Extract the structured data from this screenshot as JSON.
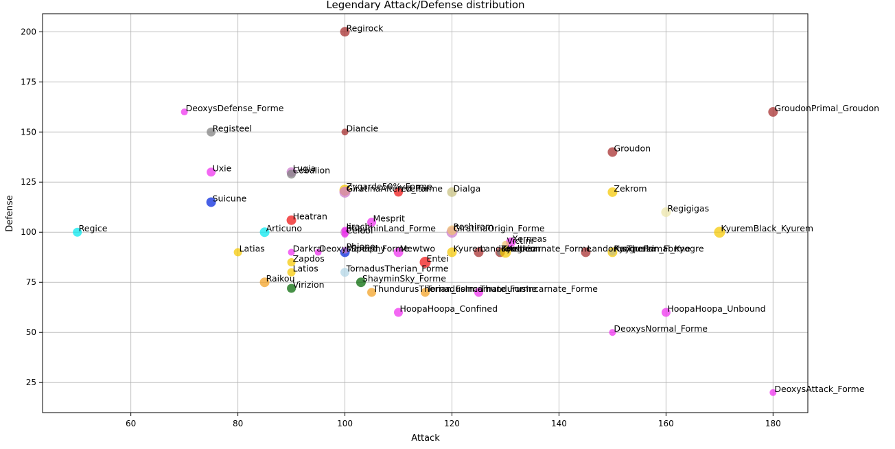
{
  "chart_data": {
    "type": "scatter",
    "title": "Legendary Attack/Defense distribution",
    "xlabel": "Attack",
    "ylabel": "Defense",
    "xlim": [
      43.5,
      186.5
    ],
    "ylim": [
      10,
      209
    ],
    "xticks": [
      60,
      80,
      100,
      120,
      140,
      160,
      180
    ],
    "yticks": [
      25,
      50,
      75,
      100,
      125,
      150,
      175,
      200
    ],
    "grid": true,
    "colors": {
      "brown": "#a52a2a",
      "magenta": "#ee2eee",
      "gray": "#808080",
      "blue": "#0022dd",
      "cyan": "#00e8ee",
      "red": "#ee1111",
      "orange": "#f3a020",
      "gold": "#f5c800",
      "green": "#006600",
      "khaki": "#c8c080",
      "lightblue": "#b0d4e4",
      "beige": "#ece4a8",
      "plum": "#cc77cc",
      "wheat": "#f0c070"
    },
    "points": [
      {
        "label": "Regirock",
        "x": 100,
        "y": 200,
        "color": "brown",
        "size": 7
      },
      {
        "label": "DeoxysDefense_Forme",
        "x": 70,
        "y": 160,
        "color": "magenta",
        "size": 5
      },
      {
        "label": "GroudonPrimal_Groudon",
        "x": 180,
        "y": 160,
        "color": "brown",
        "size": 7
      },
      {
        "label": "Registeel",
        "x": 75,
        "y": 150,
        "color": "gray",
        "size": 6.5
      },
      {
        "label": "Diancie",
        "x": 100,
        "y": 150,
        "color": "brown",
        "size": 5
      },
      {
        "label": "Groudon",
        "x": 150,
        "y": 140,
        "color": "brown",
        "size": 7
      },
      {
        "label": "Uxie",
        "x": 75,
        "y": 130,
        "color": "magenta",
        "size": 6.5
      },
      {
        "label": "Lugia",
        "x": 90,
        "y": 130,
        "color": "plum",
        "size": 7
      },
      {
        "label": "Cobalion",
        "x": 90,
        "y": 129,
        "color": "gray",
        "size": 6.5
      },
      {
        "label": "Zygarde50%_Forme",
        "x": 100,
        "y": 121,
        "color": "gold",
        "size": 8
      },
      {
        "label": "GiratinaAltered_Forme",
        "x": 100,
        "y": 120,
        "color": "plum",
        "size": 8
      },
      {
        "label": "Yveltal",
        "x": 110,
        "y": 120,
        "color": "red",
        "size": 6.5
      },
      {
        "label": "Dialga",
        "x": 120,
        "y": 120,
        "color": "khaki",
        "size": 7
      },
      {
        "label": "Zekrom",
        "x": 150,
        "y": 120,
        "color": "gold",
        "size": 7
      },
      {
        "label": "Suicune",
        "x": 75,
        "y": 115,
        "color": "blue",
        "size": 7
      },
      {
        "label": "Regigigas",
        "x": 160,
        "y": 110,
        "color": "beige",
        "size": 7
      },
      {
        "label": "Heatran",
        "x": 90,
        "y": 106,
        "color": "red",
        "size": 7
      },
      {
        "label": "Mesprit",
        "x": 105,
        "y": 105,
        "color": "magenta",
        "size": 6.5
      },
      {
        "label": "Regice",
        "x": 50,
        "y": 100,
        "color": "cyan",
        "size": 6.5
      },
      {
        "label": "Articuno",
        "x": 85,
        "y": 100,
        "color": "cyan",
        "size": 7
      },
      {
        "label": "ShayminLand_Forme",
        "x": 100,
        "y": 100,
        "color": "plum",
        "size": 6.5
      },
      {
        "label": "Jirachi",
        "x": 100,
        "y": 101,
        "color": "magenta",
        "size": 5
      },
      {
        "label": "Celebi",
        "x": 100,
        "y": 99,
        "color": "magenta",
        "size": 5
      },
      {
        "label": "GiratinaOrigin_Forme",
        "x": 120,
        "y": 100,
        "color": "plum",
        "size": 8
      },
      {
        "label": "Reshiram",
        "x": 120,
        "y": 101,
        "color": "wheat",
        "size": 7
      },
      {
        "label": "KyuremBlack_Kyurem",
        "x": 170,
        "y": 100,
        "color": "gold",
        "size": 8
      },
      {
        "label": "Xerneas",
        "x": 131,
        "y": 95,
        "color": "magenta",
        "size": 7
      },
      {
        "label": "Victini",
        "x": 130,
        "y": 94,
        "color": "wheat",
        "size": 5
      },
      {
        "label": "Latias",
        "x": 80,
        "y": 90,
        "color": "gold",
        "size": 6
      },
      {
        "label": "Darkrai",
        "x": 90,
        "y": 90,
        "color": "magenta",
        "size": 5
      },
      {
        "label": "DeoxysSpeed_Forme",
        "x": 95,
        "y": 90,
        "color": "magenta",
        "size": 5
      },
      {
        "label": "Manaphy",
        "x": 100,
        "y": 90,
        "color": "blue",
        "size": 7
      },
      {
        "label": "Phione",
        "x": 100,
        "y": 91,
        "color": "plum",
        "size": 5
      },
      {
        "label": "Mewtwo",
        "x": 110,
        "y": 90,
        "color": "magenta",
        "size": 7
      },
      {
        "label": "Kyurem",
        "x": 120,
        "y": 90,
        "color": "gold",
        "size": 7
      },
      {
        "label": "LandorusIncarnate_Forme",
        "x": 125,
        "y": 90,
        "color": "brown",
        "size": 7
      },
      {
        "label": "Kyogre",
        "x": 129,
        "y": 90,
        "color": "brown",
        "size": 7
      },
      {
        "label": "Terrakion",
        "x": 129,
        "y": 90,
        "color": "gray",
        "size": 5
      },
      {
        "label": "Zapdos",
        "x": 90,
        "y": 85,
        "color": "gold",
        "size": 6
      },
      {
        "label": "Entei",
        "x": 115,
        "y": 85,
        "color": "red",
        "size": 8
      },
      {
        "label": "Keldeo",
        "x": 130,
        "y": 90,
        "color": "gold",
        "size": 8
      },
      {
        "label": "LandorusTherian_Forme",
        "x": 145,
        "y": 90,
        "color": "brown",
        "size": 7
      },
      {
        "label": "Rayquaza",
        "x": 150,
        "y": 90,
        "color": "gold",
        "size": 7
      },
      {
        "label": "KyogrePrimal_Kyogre",
        "x": 150,
        "y": 90,
        "color": "khaki",
        "size": 5
      },
      {
        "label": "Latios",
        "x": 90,
        "y": 80,
        "color": "gold",
        "size": 6
      },
      {
        "label": "TornadusTherian_Forme",
        "x": 100,
        "y": 80,
        "color": "lightblue",
        "size": 6.5
      },
      {
        "label": "Raikou",
        "x": 85,
        "y": 75,
        "color": "orange",
        "size": 7
      },
      {
        "label": "ShayminSky_Forme",
        "x": 103,
        "y": 75,
        "color": "green",
        "size": 7
      },
      {
        "label": "Virizion",
        "x": 90,
        "y": 72,
        "color": "green",
        "size": 6.5
      },
      {
        "label": "ThundurusTherian_Forme",
        "x": 105,
        "y": 70,
        "color": "orange",
        "size": 6.5
      },
      {
        "label": "TornadusIncarnate_Forme",
        "x": 115,
        "y": 70,
        "color": "orange",
        "size": 6.5
      },
      {
        "label": "ThundurusIncarnate_Forme",
        "x": 125,
        "y": 70,
        "color": "magenta",
        "size": 6.5
      },
      {
        "label": "HoopaHoopa_Confined",
        "x": 110,
        "y": 60,
        "color": "magenta",
        "size": 6.5
      },
      {
        "label": "HoopaHoopa_Unbound",
        "x": 160,
        "y": 60,
        "color": "magenta",
        "size": 6.5
      },
      {
        "label": "DeoxysNormal_Forme",
        "x": 150,
        "y": 50,
        "color": "magenta",
        "size": 5
      },
      {
        "label": "DeoxysAttack_Forme",
        "x": 180,
        "y": 20,
        "color": "magenta",
        "size": 5
      }
    ]
  }
}
